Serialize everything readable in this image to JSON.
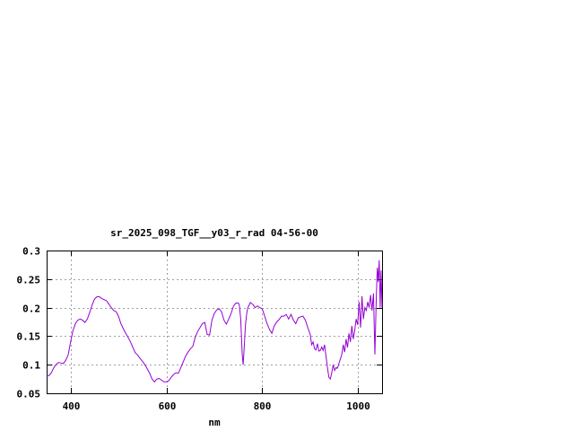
{
  "chart_data": {
    "type": "line",
    "title": "sr_2025_098_TGF__y03_r_rad 04-56-00",
    "xlabel": "nm",
    "ylabel": "",
    "xlim": [
      350,
      1050
    ],
    "ylim": [
      0.05,
      0.3
    ],
    "x_ticks": [
      400,
      600,
      800,
      1000
    ],
    "y_ticks": [
      0.05,
      0.1,
      0.15,
      0.2,
      0.25,
      0.3
    ],
    "x_tick_labels": [
      "400",
      "600",
      "800",
      "1000"
    ],
    "y_tick_labels": [
      "0.05",
      "0.1",
      "0.15",
      "0.2",
      "0.25",
      "0.3"
    ],
    "grid": true,
    "line_color": "#9400d3",
    "series": [
      {
        "x": [
          350,
          355,
          360,
          365,
          370,
          375,
          380,
          385,
          390,
          395,
          400,
          405,
          410,
          415,
          420,
          425,
          430,
          435,
          440,
          445,
          450,
          455,
          460,
          465,
          470,
          475,
          480,
          485,
          490,
          495,
          500,
          505,
          510,
          515,
          520,
          525,
          530,
          535,
          540,
          545,
          550,
          555,
          560,
          565,
          570,
          575,
          580,
          585,
          590,
          595,
          600,
          605,
          610,
          615,
          620,
          625,
          630,
          635,
          640,
          645,
          650,
          655,
          660,
          665,
          670,
          675,
          680,
          685,
          690,
          695,
          700,
          705,
          710,
          715,
          720,
          725,
          730,
          735,
          740,
          745,
          750,
          752,
          755,
          758,
          760,
          762,
          765,
          768,
          770,
          775,
          780,
          785,
          790,
          795,
          800,
          805,
          810,
          815,
          820,
          825,
          830,
          835,
          840,
          845,
          850,
          855,
          860,
          865,
          870,
          875,
          880,
          885,
          890,
          895,
          900,
          903,
          906,
          909,
          912,
          915,
          918,
          921,
          924,
          927,
          930,
          933,
          936,
          939,
          942,
          945,
          948,
          951,
          954,
          957,
          960,
          963,
          966,
          969,
          972,
          975,
          978,
          981,
          984,
          987,
          990,
          993,
          996,
          999,
          1002,
          1005,
          1008,
          1011,
          1014,
          1017,
          1020,
          1023,
          1026,
          1029,
          1032,
          1035,
          1038,
          1040,
          1042,
          1044,
          1046,
          1048,
          1050
        ],
        "y": [
          0.08,
          0.081,
          0.086,
          0.095,
          0.101,
          0.104,
          0.103,
          0.102,
          0.108,
          0.117,
          0.14,
          0.16,
          0.172,
          0.178,
          0.18,
          0.178,
          0.174,
          0.18,
          0.192,
          0.205,
          0.215,
          0.219,
          0.219,
          0.216,
          0.214,
          0.212,
          0.206,
          0.2,
          0.195,
          0.193,
          0.185,
          0.172,
          0.163,
          0.155,
          0.148,
          0.14,
          0.13,
          0.121,
          0.117,
          0.111,
          0.106,
          0.1,
          0.093,
          0.085,
          0.075,
          0.07,
          0.075,
          0.076,
          0.073,
          0.07,
          0.07,
          0.072,
          0.078,
          0.083,
          0.086,
          0.085,
          0.095,
          0.105,
          0.115,
          0.122,
          0.128,
          0.132,
          0.148,
          0.158,
          0.165,
          0.172,
          0.174,
          0.153,
          0.152,
          0.178,
          0.19,
          0.196,
          0.198,
          0.193,
          0.178,
          0.171,
          0.18,
          0.19,
          0.203,
          0.208,
          0.208,
          0.205,
          0.18,
          0.12,
          0.1,
          0.125,
          0.17,
          0.192,
          0.2,
          0.209,
          0.206,
          0.2,
          0.203,
          0.2,
          0.198,
          0.185,
          0.172,
          0.162,
          0.155,
          0.168,
          0.175,
          0.179,
          0.185,
          0.185,
          0.188,
          0.18,
          0.188,
          0.178,
          0.172,
          0.182,
          0.184,
          0.185,
          0.178,
          0.165,
          0.153,
          0.135,
          0.14,
          0.128,
          0.126,
          0.137,
          0.124,
          0.125,
          0.131,
          0.125,
          0.135,
          0.115,
          0.095,
          0.078,
          0.075,
          0.086,
          0.1,
          0.09,
          0.095,
          0.094,
          0.102,
          0.11,
          0.118,
          0.135,
          0.122,
          0.145,
          0.13,
          0.155,
          0.14,
          0.168,
          0.145,
          0.16,
          0.18,
          0.17,
          0.21,
          0.165,
          0.22,
          0.18,
          0.2,
          0.195,
          0.21,
          0.2,
          0.222,
          0.195,
          0.225,
          0.118,
          0.22,
          0.27,
          0.245,
          0.283,
          0.2,
          0.265,
          0.2
        ]
      }
    ]
  }
}
